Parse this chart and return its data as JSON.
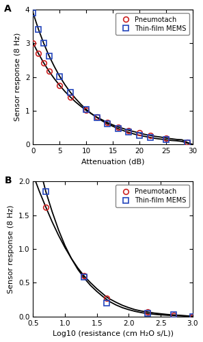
{
  "panel_A": {
    "title": "A",
    "xlabel": "Attenuation (dB)",
    "ylabel": "Sensor response (8 Hz)",
    "xlim": [
      0,
      30
    ],
    "ylim": [
      0,
      4
    ],
    "yticks": [
      0,
      1,
      2,
      3,
      4
    ],
    "xticks": [
      0,
      5,
      10,
      15,
      20,
      25,
      30
    ],
    "pneumotach_x": [
      0,
      1,
      2,
      3,
      4,
      5,
      6,
      7,
      8,
      9,
      10,
      11,
      12,
      13,
      14,
      15,
      16,
      17,
      18,
      19,
      20,
      21,
      22,
      23,
      24,
      25,
      26,
      27,
      28,
      29,
      30
    ],
    "pneumotach_y": [
      3.0,
      2.7,
      2.42,
      2.17,
      1.95,
      1.75,
      1.57,
      1.41,
      1.26,
      1.13,
      1.01,
      0.91,
      0.81,
      0.73,
      0.65,
      0.58,
      0.52,
      0.47,
      0.42,
      0.38,
      0.34,
      0.3,
      0.27,
      0.24,
      0.22,
      0.19,
      0.17,
      0.15,
      0.14,
      0.06,
      0.0
    ],
    "thinfilm_x": [
      0,
      1,
      2,
      3,
      4,
      5,
      6,
      7,
      8,
      9,
      10,
      11,
      12,
      13,
      14,
      15,
      16,
      17,
      18,
      19,
      20,
      21,
      22,
      23,
      24,
      25,
      26,
      27,
      28,
      29,
      30
    ],
    "thinfilm_y": [
      3.9,
      3.42,
      3.0,
      2.63,
      2.31,
      2.02,
      1.77,
      1.55,
      1.36,
      1.19,
      1.04,
      0.91,
      0.8,
      0.7,
      0.61,
      0.54,
      0.47,
      0.41,
      0.36,
      0.31,
      0.27,
      0.24,
      0.21,
      0.18,
      0.16,
      0.14,
      0.12,
      0.11,
      0.09,
      0.04,
      0.0
    ],
    "pneumo_scatter_x": [
      0,
      1,
      2,
      3,
      5,
      7,
      10,
      12,
      14,
      16,
      18,
      20,
      22,
      25,
      29
    ],
    "pneumo_scatter_y": [
      3.0,
      2.7,
      2.42,
      2.17,
      1.75,
      1.41,
      1.01,
      0.81,
      0.65,
      0.52,
      0.42,
      0.34,
      0.27,
      0.19,
      0.06
    ],
    "thin_scatter_x": [
      0,
      1,
      2,
      3,
      5,
      7,
      10,
      12,
      14,
      16,
      18,
      20,
      22,
      25,
      29
    ],
    "thin_scatter_y": [
      3.9,
      3.42,
      3.0,
      2.63,
      2.02,
      1.55,
      1.04,
      0.8,
      0.61,
      0.47,
      0.36,
      0.27,
      0.21,
      0.14,
      0.04
    ],
    "circle_color": "#cc2222",
    "square_color": "#2244bb",
    "fit_color": "black"
  },
  "panel_B": {
    "title": "B",
    "xlabel": "Log10 (resistance (cm H₂O s/L))",
    "ylabel": "Sensor response (8 Hz)",
    "xlim": [
      0.5,
      3.0
    ],
    "ylim": [
      0,
      2
    ],
    "yticks": [
      0.0,
      0.5,
      1.0,
      1.5,
      2.0
    ],
    "xticks": [
      0.5,
      1.0,
      1.5,
      2.0,
      2.5,
      3.0
    ],
    "pneumo_scatter_x": [
      0.7,
      1.3,
      1.65,
      2.3,
      2.7,
      3.0
    ],
    "pneumo_scatter_y": [
      1.62,
      0.6,
      0.27,
      0.07,
      0.02,
      0.0
    ],
    "thin_scatter_x": [
      0.7,
      1.3,
      1.65,
      2.3,
      2.7,
      3.0
    ],
    "thin_scatter_y": [
      1.85,
      0.58,
      0.2,
      0.05,
      0.03,
      0.0
    ],
    "fit_pneumotach_x": [
      0.5,
      0.6,
      0.7,
      0.8,
      0.9,
      1.0,
      1.1,
      1.2,
      1.3,
      1.4,
      1.5,
      1.6,
      1.65,
      1.7,
      1.8,
      1.9,
      2.0,
      2.1,
      2.2,
      2.3,
      2.4,
      2.5,
      2.6,
      2.7,
      2.8,
      2.9,
      3.0
    ],
    "fit_pneumotach_y": [
      2.1,
      1.85,
      1.62,
      1.4,
      1.2,
      1.02,
      0.86,
      0.72,
      0.6,
      0.5,
      0.41,
      0.33,
      0.29,
      0.26,
      0.21,
      0.165,
      0.13,
      0.1,
      0.08,
      0.065,
      0.05,
      0.04,
      0.03,
      0.022,
      0.017,
      0.01,
      0.0
    ],
    "fit_thinfilm_x": [
      0.5,
      0.6,
      0.7,
      0.8,
      0.9,
      1.0,
      1.1,
      1.2,
      1.3,
      1.4,
      1.5,
      1.6,
      1.65,
      1.7,
      1.8,
      1.9,
      2.0,
      2.1,
      2.2,
      2.3,
      2.4,
      2.5,
      2.6,
      2.7,
      2.8,
      2.9,
      3.0
    ],
    "fit_thinfilm_y": [
      2.5,
      2.22,
      1.85,
      1.55,
      1.28,
      1.05,
      0.86,
      0.7,
      0.57,
      0.46,
      0.37,
      0.29,
      0.255,
      0.22,
      0.17,
      0.13,
      0.1,
      0.075,
      0.056,
      0.042,
      0.032,
      0.024,
      0.018,
      0.013,
      0.01,
      0.006,
      0.0
    ],
    "circle_color": "#cc2222",
    "square_color": "#2244bb",
    "fit_color": "black"
  },
  "legend_labels": [
    "Pneumotach",
    "Thin-film MEMS"
  ]
}
